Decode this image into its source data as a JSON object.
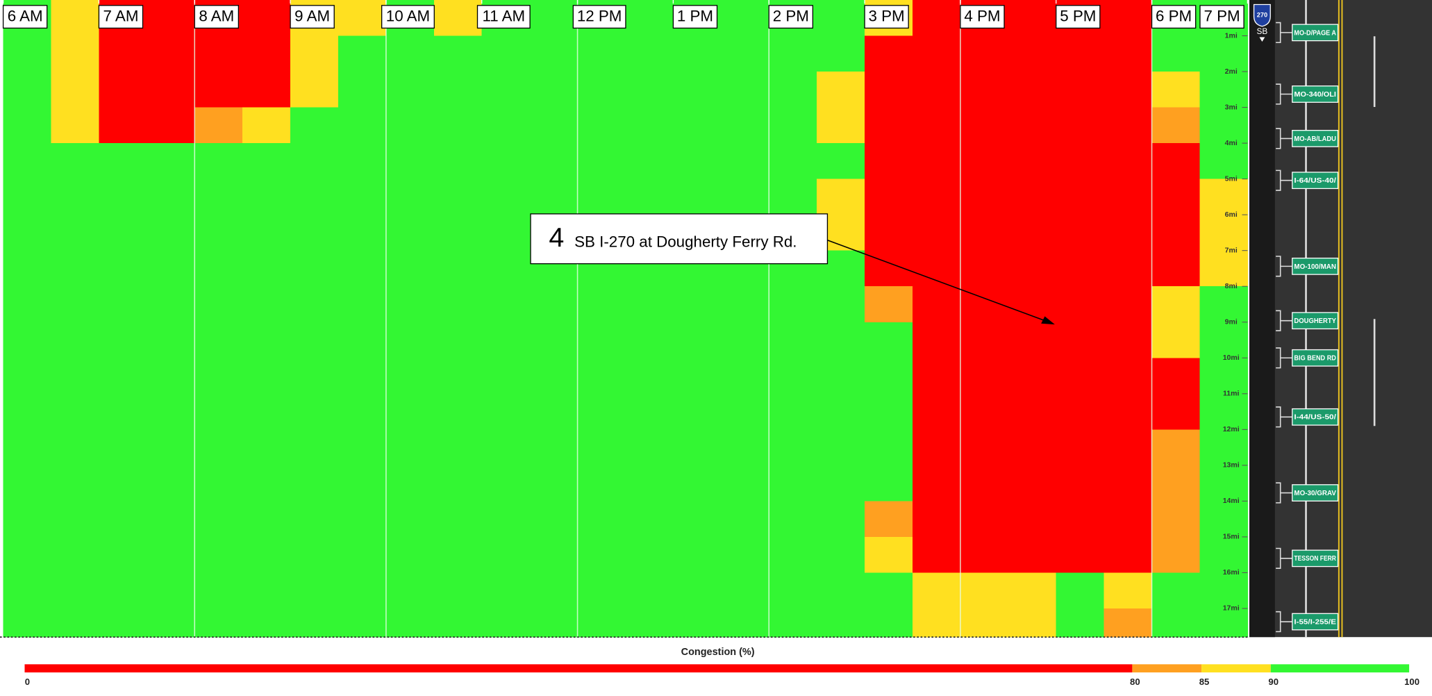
{
  "chart_data": {
    "type": "heatmap",
    "direction": "SB",
    "route": "270",
    "xlim": [
      6,
      19
    ],
    "xticks": [
      {
        "value": 6,
        "label": "6 AM"
      },
      {
        "value": 7,
        "label": "7 AM"
      },
      {
        "value": 8,
        "label": "8 AM"
      },
      {
        "value": 9,
        "label": "9 AM"
      },
      {
        "value": 10,
        "label": "10 AM"
      },
      {
        "value": 11,
        "label": "11 AM"
      },
      {
        "value": 12,
        "label": "12 PM"
      },
      {
        "value": 13,
        "label": "1 PM"
      },
      {
        "value": 14,
        "label": "2 PM"
      },
      {
        "value": 15,
        "label": "3 PM"
      },
      {
        "value": 16,
        "label": "4 PM"
      },
      {
        "value": 17,
        "label": "5 PM"
      },
      {
        "value": 18,
        "label": "6 PM"
      },
      {
        "value": 19,
        "label": "7 PM"
      }
    ],
    "ylim": [
      0,
      17.8
    ],
    "yticks": [
      {
        "value": 1,
        "label": "1mi"
      },
      {
        "value": 2,
        "label": "2mi"
      },
      {
        "value": 3,
        "label": "3mi"
      },
      {
        "value": 4,
        "label": "4mi"
      },
      {
        "value": 5,
        "label": "5mi"
      },
      {
        "value": 6,
        "label": "6mi"
      },
      {
        "value": 7,
        "label": "7mi"
      },
      {
        "value": 8,
        "label": "8mi"
      },
      {
        "value": 9,
        "label": "9mi"
      },
      {
        "value": 10,
        "label": "10mi"
      },
      {
        "value": 11,
        "label": "11mi"
      },
      {
        "value": 12,
        "label": "12mi"
      },
      {
        "value": 13,
        "label": "13mi"
      },
      {
        "value": 14,
        "label": "14mi"
      },
      {
        "value": 15,
        "label": "15mi"
      },
      {
        "value": 16,
        "label": "16mi"
      },
      {
        "value": 17,
        "label": "17mi"
      }
    ],
    "x": [
      6,
      6.5,
      7,
      7.5,
      8,
      8.5,
      9,
      9.5,
      10,
      10.5,
      11,
      11.5,
      12,
      12.5,
      13,
      13.5,
      14,
      14.5,
      15,
      15.5,
      16,
      16.5,
      17,
      17.5,
      18,
      18.5
    ],
    "y": [
      0,
      1,
      2,
      3,
      4,
      5,
      6,
      7,
      8,
      9,
      10,
      11,
      12,
      13,
      14,
      15,
      16,
      17
    ],
    "rows": [
      [
        95,
        88,
        50,
        40,
        40,
        60,
        87,
        88,
        95,
        86,
        95,
        95,
        95,
        95,
        95,
        95,
        95,
        95,
        88,
        60,
        30,
        30,
        30,
        75,
        95,
        95
      ],
      [
        95,
        87,
        70,
        40,
        40,
        60,
        86,
        95,
        95,
        95,
        95,
        95,
        95,
        95,
        95,
        95,
        95,
        90,
        60,
        30,
        30,
        30,
        30,
        40,
        90,
        95
      ],
      [
        95,
        87,
        65,
        45,
        50,
        70,
        87,
        93,
        95,
        95,
        95,
        95,
        95,
        95,
        95,
        95,
        95,
        86,
        60,
        30,
        30,
        30,
        30,
        30,
        85,
        95
      ],
      [
        95,
        86,
        60,
        50,
        83,
        88,
        93,
        95,
        95,
        95,
        95,
        95,
        95,
        95,
        95,
        95,
        95,
        88,
        55,
        30,
        30,
        30,
        30,
        30,
        80,
        93
      ],
      [
        95,
        95,
        95,
        92,
        95,
        95,
        95,
        95,
        95,
        95,
        95,
        95,
        95,
        95,
        95,
        95,
        95,
        95,
        70,
        30,
        30,
        30,
        30,
        30,
        75,
        92
      ],
      [
        95,
        95,
        95,
        95,
        95,
        95,
        95,
        95,
        95,
        95,
        95,
        95,
        95,
        95,
        95,
        95,
        95,
        89,
        55,
        30,
        30,
        30,
        30,
        30,
        60,
        88
      ],
      [
        95,
        95,
        95,
        95,
        95,
        95,
        95,
        95,
        95,
        95,
        95,
        95,
        95,
        95,
        95,
        95,
        95,
        88,
        60,
        30,
        30,
        30,
        30,
        30,
        60,
        87
      ],
      [
        95,
        95,
        95,
        95,
        95,
        95,
        95,
        95,
        95,
        95,
        95,
        95,
        95,
        95,
        95,
        95,
        95,
        95,
        65,
        30,
        30,
        30,
        30,
        30,
        60,
        88
      ],
      [
        95,
        95,
        95,
        95,
        95,
        95,
        95,
        95,
        95,
        95,
        95,
        95,
        95,
        95,
        95,
        95,
        95,
        95,
        84,
        55,
        30,
        30,
        30,
        30,
        85,
        90
      ],
      [
        95,
        95,
        95,
        95,
        95,
        95,
        95,
        95,
        95,
        95,
        95,
        95,
        95,
        95,
        95,
        95,
        95,
        95,
        95,
        75,
        30,
        30,
        30,
        30,
        85,
        95
      ],
      [
        95,
        95,
        95,
        92,
        95,
        95,
        95,
        95,
        95,
        95,
        95,
        95,
        95,
        95,
        95,
        95,
        95,
        95,
        95,
        70,
        30,
        30,
        30,
        30,
        75,
        90
      ],
      [
        95,
        95,
        95,
        92,
        95,
        95,
        95,
        95,
        95,
        95,
        95,
        95,
        95,
        95,
        95,
        95,
        95,
        95,
        95,
        72,
        30,
        30,
        30,
        30,
        75,
        90
      ],
      [
        95,
        95,
        95,
        95,
        95,
        95,
        95,
        95,
        95,
        95,
        95,
        95,
        95,
        95,
        95,
        95,
        95,
        95,
        90,
        45,
        30,
        30,
        30,
        30,
        82,
        93
      ],
      [
        95,
        95,
        95,
        95,
        95,
        95,
        95,
        95,
        95,
        95,
        95,
        95,
        95,
        95,
        95,
        95,
        95,
        95,
        90,
        45,
        30,
        30,
        30,
        30,
        82,
        93
      ],
      [
        95,
        95,
        95,
        95,
        95,
        95,
        95,
        95,
        95,
        95,
        95,
        95,
        95,
        95,
        95,
        95,
        95,
        95,
        84,
        70,
        30,
        75,
        70,
        30,
        82,
        90
      ],
      [
        95,
        95,
        95,
        95,
        95,
        95,
        95,
        95,
        95,
        95,
        95,
        95,
        95,
        95,
        95,
        95,
        95,
        95,
        85,
        72,
        40,
        72,
        70,
        40,
        83,
        92
      ],
      [
        95,
        95,
        95,
        95,
        95,
        95,
        95,
        95,
        95,
        95,
        95,
        95,
        95,
        95,
        95,
        95,
        95,
        95,
        95,
        88,
        89,
        88,
        95,
        85,
        93,
        95
      ],
      [
        95,
        95,
        95,
        95,
        95,
        95,
        95,
        95,
        95,
        95,
        95,
        95,
        95,
        95,
        95,
        95,
        95,
        95,
        95,
        88,
        88,
        88,
        95,
        82,
        94,
        95
      ]
    ],
    "colorbar": {
      "title": "Congestion (%)",
      "ticks": [
        0,
        80,
        85,
        90,
        100
      ],
      "colors": [
        "#ff0000",
        "#ffa020",
        "#ffe020",
        "#33f733"
      ]
    },
    "annotation": {
      "number": "4",
      "text": "SB I-270 at Dougherty Ferry Rd."
    },
    "exits": [
      {
        "name": "MO-D/PAGE A",
        "mile": 0.91
      },
      {
        "name": "MO-340/OLI",
        "mile": 2.63
      },
      {
        "name": "MO-AB/LADU",
        "mile": 3.87
      },
      {
        "name": "I-64/US-40/",
        "mile": 5.04
      },
      {
        "name": "MO-100/MAN",
        "mile": 7.44
      },
      {
        "name": "DOUGHERTY",
        "mile": 8.96
      },
      {
        "name": "BIG BEND RD",
        "mile": 10.0
      },
      {
        "name": "I-44/US-50/",
        "mile": 11.65
      },
      {
        "name": "MO-30/GRAV",
        "mile": 13.77
      },
      {
        "name": "TESSON FERR",
        "mile": 15.6
      },
      {
        "name": "I-55/I-255/E",
        "mile": 17.37
      }
    ]
  }
}
